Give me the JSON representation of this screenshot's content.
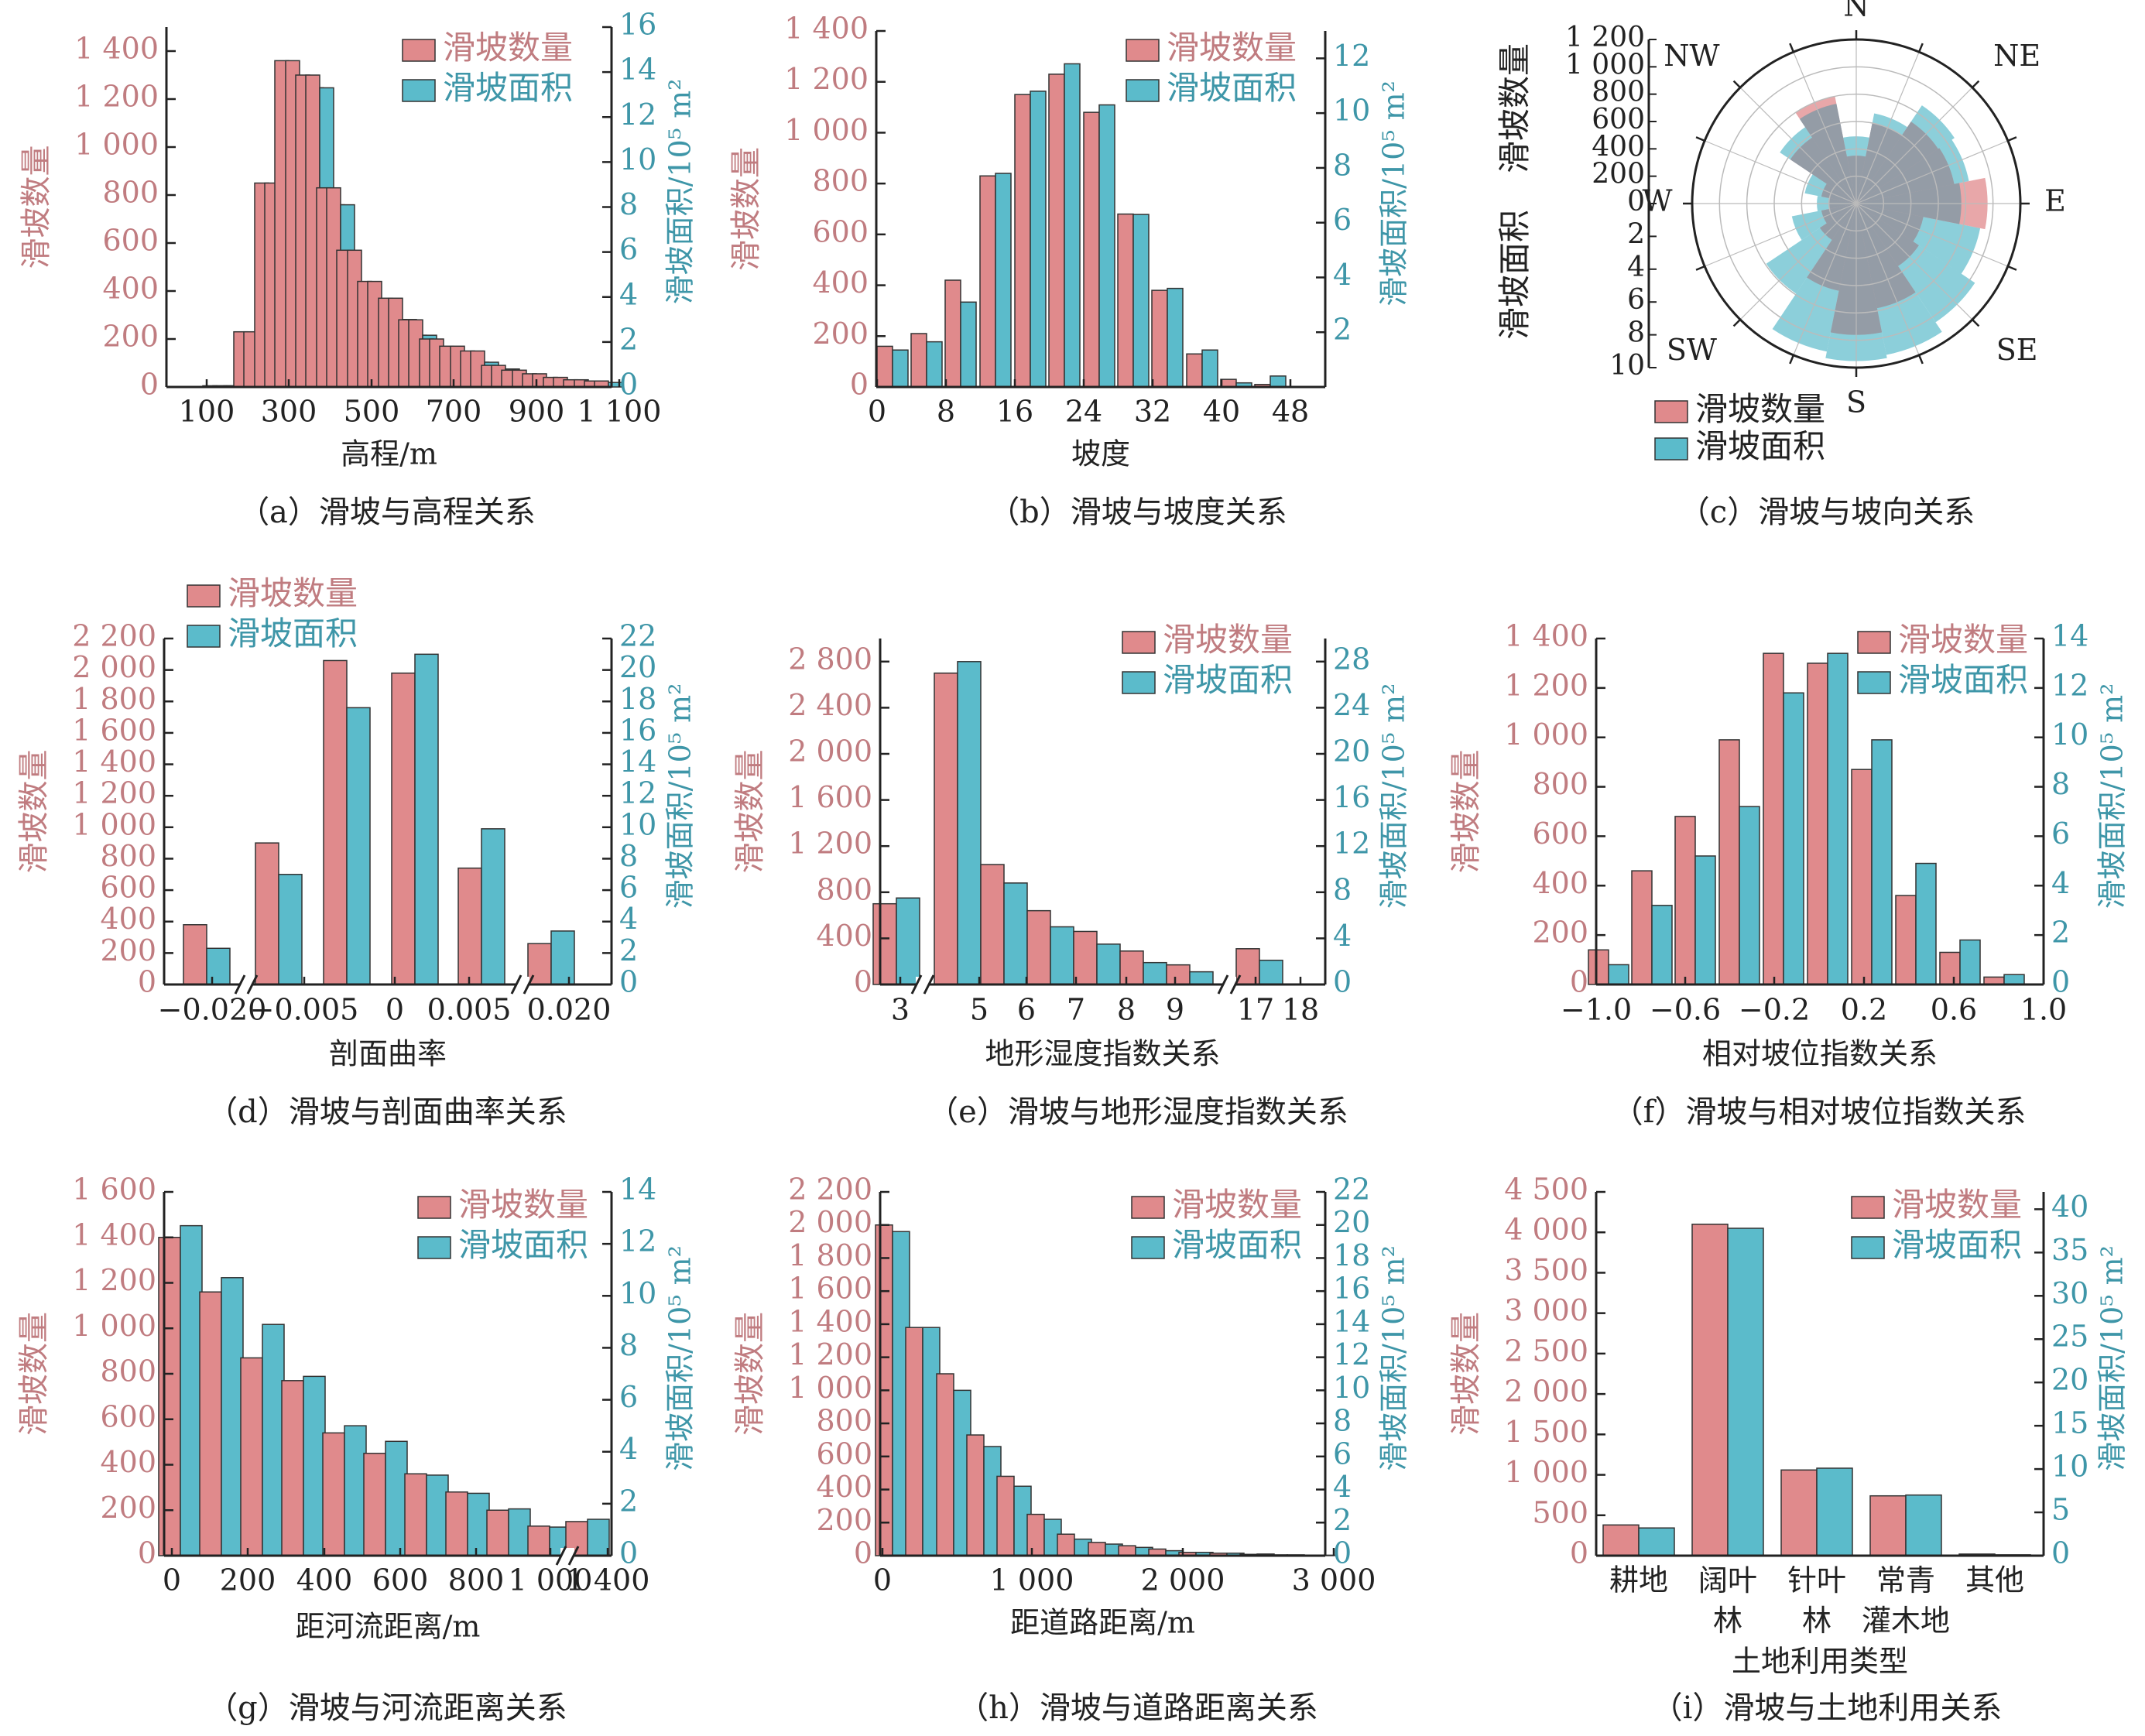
{
  "colors": {
    "count": "#E08A8C",
    "area": "#5BBBCB",
    "count_text": "#C07C80",
    "area_text": "#3E96A8",
    "axis": "#222222"
  },
  "chart_data": [
    {
      "id": "a",
      "type": "bar",
      "caption": "（a）滑坡与高程关系",
      "xlabel": "高程/m",
      "ylabel_left": "滑坡数量",
      "ylabel_right": "滑坡面积/10⁵ m²",
      "legend": [
        "滑坡数量",
        "滑坡面积"
      ],
      "legend_position": "top-right",
      "ylim_left": [
        0,
        1500
      ],
      "ylim_right": [
        0,
        16
      ],
      "yticks_left": [
        "0",
        "200",
        "400",
        "600",
        "800",
        "1 000",
        "1 200",
        "1 400"
      ],
      "yticks_right": [
        "0",
        "2",
        "4",
        "6",
        "8",
        "10",
        "12",
        "14",
        "16"
      ],
      "xticks": [
        "100",
        "300",
        "500",
        "700",
        "900",
        "1 100"
      ],
      "categories": [
        "0-20",
        "20-40",
        "40-60",
        "60-80",
        "80-100",
        "100-120",
        "120-140",
        "140-160",
        "160-180",
        "180-200",
        "200-220",
        "220-240",
        "240-260",
        "260-280",
        "280-300",
        "300-320",
        "320-340",
        "340-360",
        "360-380",
        "380-400",
        "400-420",
        "420-440",
        "440-460",
        "460-480",
        "480-500",
        "500-520",
        "520-540",
        "540-560",
        "560-580",
        "580-600",
        "600-620",
        "620-640",
        "640-660",
        "660-680",
        "680-700",
        "700-720",
        "720-740",
        "740-760",
        "760-780",
        "780-800",
        "800-820",
        "820-840",
        "840-860",
        "860-880",
        "880-900",
        "900-920",
        "920-940",
        "940-960",
        "960-980",
        "980-1000",
        "1000-1020",
        "1020-1040",
        "1040-1060",
        "1060-1080",
        "1080-1100"
      ],
      "series": [
        {
          "name": "滑坡数量",
          "values": [
            0,
            0,
            0,
            5,
            5,
            5,
            230,
            230,
            850,
            850,
            1360,
            1360,
            1300,
            1300,
            830,
            830,
            570,
            570,
            440,
            440,
            370,
            370,
            280,
            280,
            200,
            200,
            170,
            170,
            150,
            150,
            90,
            90,
            70,
            70,
            55,
            55,
            40,
            40,
            30,
            30,
            25,
            25,
            18,
            18,
            12,
            12,
            8,
            8,
            5,
            5,
            3,
            3,
            2,
            2,
            0
          ]
        },
        {
          "name": "滑坡面积",
          "values": [
            0,
            0,
            0,
            0.05,
            0.05,
            0.05,
            1.6,
            1.6,
            6.3,
            6.3,
            13.6,
            13.6,
            13.3,
            13.3,
            8.1,
            8.1,
            4.6,
            4.6,
            3.9,
            3.9,
            3.0,
            3.0,
            2.3,
            2.3,
            1.8,
            1.8,
            1.3,
            1.3,
            1.1,
            1.1,
            0.8,
            0.8,
            0.5,
            0.5,
            0.4,
            0.4,
            0.3,
            0.3,
            0.2,
            0.2,
            0.2,
            0.2,
            0.1,
            0.1,
            0.1,
            0.1,
            0.05,
            0.05,
            0.05,
            0.05,
            0.03,
            0.03,
            0.02,
            0.02,
            0
          ]
        }
      ]
    },
    {
      "id": "b",
      "type": "bar",
      "caption": "（b）滑坡与坡度关系",
      "xlabel": "坡度",
      "ylabel_left": "滑坡数量",
      "ylabel_right": "滑坡面积/10⁵ m²",
      "legend": [
        "滑坡数量",
        "滑坡面积"
      ],
      "legend_position": "top-right",
      "ylim_left": [
        0,
        1400
      ],
      "ylim_right": [
        0,
        13
      ],
      "yticks_left": [
        "0",
        "200",
        "400",
        "600",
        "800",
        "1 000",
        "1 200",
        "1 400"
      ],
      "yticks_right": [
        "2",
        "4",
        "6",
        "8",
        "10",
        "12"
      ],
      "xticks": [
        "0",
        "8",
        "16",
        "24",
        "32",
        "40",
        "48"
      ],
      "categories": [
        "0-4",
        "4-8",
        "8-12",
        "12-16",
        "16-20",
        "20-24",
        "24-28",
        "28-32",
        "32-36",
        "36-40",
        "40-44",
        "44-48"
      ],
      "series": [
        {
          "name": "滑坡数量",
          "values": [
            160,
            210,
            420,
            830,
            1150,
            1230,
            1080,
            680,
            380,
            130,
            30,
            10
          ]
        },
        {
          "name": "滑坡面积",
          "values": [
            1.35,
            1.65,
            3.1,
            7.8,
            10.8,
            11.8,
            10.3,
            6.3,
            3.6,
            1.35,
            0.15,
            0.4
          ]
        }
      ]
    },
    {
      "id": "c",
      "type": "rose",
      "caption": "（c）滑坡与坡向关系",
      "ylabel_count": "滑坡数量",
      "ylabel_area": "滑坡面积",
      "legend": [
        "滑坡数量",
        "滑坡面积"
      ],
      "legend_position": "bottom-left",
      "radial_ticks_count": [
        "0",
        "200",
        "400",
        "600",
        "800",
        "1 000",
        "1 200"
      ],
      "radial_ticks_area": [
        "0",
        "2",
        "4",
        "6",
        "8",
        "10"
      ],
      "directions": [
        "N",
        "NE",
        "E",
        "SE",
        "S",
        "SW",
        "W",
        "NW"
      ],
      "sectors_deg": [
        0,
        22.5,
        45,
        67.5,
        90,
        112.5,
        135,
        157.5,
        180,
        202.5,
        225,
        247.5,
        270,
        292.5,
        315,
        337.5
      ],
      "series": [
        {
          "name": "滑坡数量",
          "values": [
            350,
            600,
            720,
            730,
            960,
            500,
            550,
            780,
            960,
            650,
            320,
            260,
            200,
            260,
            580,
            800
          ]
        },
        {
          "name": "滑坡面积",
          "values": [
            4.1,
            5.6,
            7.2,
            7.0,
            6.4,
            7.7,
            8.7,
            9.4,
            9.6,
            9.2,
            6.6,
            4.0,
            2.4,
            3.2,
            5.6,
            6.2
          ]
        }
      ]
    },
    {
      "id": "d",
      "type": "bar",
      "caption": "（d）滑坡与剖面曲率关系",
      "xlabel": "剖面曲率",
      "ylabel_left": "滑坡数量",
      "ylabel_right": "滑坡面积/10⁵ m²",
      "legend": [
        "滑坡数量",
        "滑坡面积"
      ],
      "legend_position": "top-left",
      "ylim_left": [
        0,
        2200
      ],
      "ylim_right": [
        0,
        22
      ],
      "yticks_left": [
        "0",
        "200",
        "400",
        "600",
        "800",
        "1 000",
        "1 200",
        "1 400",
        "1 600",
        "1 800",
        "2 000",
        "2 200"
      ],
      "yticks_right": [
        "0",
        "2",
        "4",
        "6",
        "8",
        "10",
        "12",
        "14",
        "16",
        "18",
        "20",
        "22"
      ],
      "xticks": [
        "−0.020",
        "−0.005",
        "0",
        "0.005",
        "0.020"
      ],
      "categories": [
        "<−0.020",
        "−0.010~−0.005",
        "−0.005~0",
        "0~0.005",
        "0.005~0.010",
        ">0.020"
      ],
      "series": [
        {
          "name": "滑坡数量",
          "values": [
            380,
            900,
            2060,
            1980,
            740,
            260
          ]
        },
        {
          "name": "滑坡面积",
          "values": [
            2.3,
            7.0,
            17.6,
            21.0,
            9.9,
            3.4
          ]
        }
      ]
    },
    {
      "id": "e",
      "type": "bar",
      "caption": "（e）滑坡与地形湿度指数关系",
      "xlabel": "地形湿度指数关系",
      "ylabel_left": "滑坡数量",
      "ylabel_right": "滑坡面积/10⁵ m²",
      "legend": [
        "滑坡数量",
        "滑坡面积"
      ],
      "legend_position": "top-right",
      "ylim_left": [
        0,
        3000
      ],
      "ylim_right": [
        0,
        30
      ],
      "yticks_left": [
        "0",
        "400",
        "800",
        "1 200",
        "1 600",
        "2 000",
        "2 400",
        "2 800"
      ],
      "yticks_right": [
        "0",
        "4",
        "8",
        "12",
        "16",
        "20",
        "24",
        "28"
      ],
      "xticks": [
        "3",
        "5",
        "6",
        "7",
        "8",
        "9",
        "17",
        "18"
      ],
      "categories": [
        "3-4",
        "4-5",
        "5-6",
        "6-7",
        "7-8",
        "8-9",
        "9-10",
        "17-18"
      ],
      "series": [
        {
          "name": "滑坡数量",
          "values": [
            700,
            2700,
            1040,
            640,
            460,
            290,
            170,
            310
          ]
        },
        {
          "name": "滑坡面积",
          "values": [
            7.5,
            28.0,
            8.8,
            5.0,
            3.5,
            1.9,
            1.1,
            2.1
          ]
        }
      ]
    },
    {
      "id": "f",
      "type": "bar",
      "caption": "（f）滑坡与相对坡位指数关系",
      "xlabel": "相对坡位指数关系",
      "ylabel_left": "滑坡数量",
      "ylabel_right": "滑坡面积/10⁵ m²",
      "legend": [
        "滑坡数量",
        "滑坡面积"
      ],
      "legend_position": "top-right",
      "ylim_left": [
        0,
        1400
      ],
      "ylim_right": [
        0,
        14
      ],
      "yticks_left": [
        "0",
        "200",
        "400",
        "600",
        "800",
        "1 000",
        "1 200",
        "1 400"
      ],
      "yticks_right": [
        "0",
        "2",
        "4",
        "6",
        "8",
        "10",
        "12",
        "14"
      ],
      "xticks": [
        "−1.0",
        "−0.6",
        "−0.2",
        "0.2",
        "0.6",
        "1.0"
      ],
      "categories": [
        "−1.0~−0.8",
        "−0.8~−0.6",
        "−0.6~−0.4",
        "−0.4~−0.2",
        "−0.2~0",
        "0~0.2",
        "0.2~0.4",
        "0.4~0.6",
        "0.6~0.8",
        "0.8~1.0"
      ],
      "series": [
        {
          "name": "滑坡数量",
          "values": [
            140,
            460,
            680,
            990,
            1340,
            1300,
            870,
            360,
            130,
            30
          ]
        },
        {
          "name": "滑坡面积",
          "values": [
            0.8,
            3.2,
            5.2,
            7.2,
            11.8,
            13.4,
            9.9,
            4.9,
            1.8,
            0.4
          ]
        }
      ]
    },
    {
      "id": "g",
      "type": "bar",
      "caption": "（g）滑坡与河流距离关系",
      "xlabel": "距河流距离/m",
      "ylabel_left": "滑坡数量",
      "ylabel_right": "滑坡面积/10⁵ m²",
      "legend": [
        "滑坡数量",
        "滑坡面积"
      ],
      "legend_position": "top-right",
      "ylim_left": [
        0,
        1600
      ],
      "ylim_right": [
        0,
        14
      ],
      "yticks_left": [
        "0",
        "200",
        "400",
        "600",
        "800",
        "1 000",
        "1 200",
        "1 400",
        "1 600"
      ],
      "yticks_right": [
        "0",
        "2",
        "4",
        "6",
        "8",
        "10",
        "12",
        "14"
      ],
      "xticks": [
        "0",
        "200",
        "400",
        "600",
        "800",
        "1 000",
        "1 400"
      ],
      "categories": [
        "0-100",
        "100-200",
        "200-300",
        "300-400",
        "400-500",
        "500-600",
        "600-700",
        "700-800",
        "800-900",
        "900-1000",
        ">1000"
      ],
      "series": [
        {
          "name": "滑坡数量",
          "values": [
            1400,
            1160,
            870,
            770,
            540,
            450,
            360,
            280,
            200,
            130,
            150
          ]
        },
        {
          "name": "滑坡面积",
          "values": [
            12.7,
            10.7,
            8.9,
            6.9,
            5.0,
            4.4,
            3.1,
            2.4,
            1.8,
            1.1,
            1.4
          ]
        }
      ]
    },
    {
      "id": "h",
      "type": "bar",
      "caption": "（h）滑坡与道路距离关系",
      "xlabel": "距道路距离/m",
      "ylabel_left": "滑坡数量",
      "ylabel_right": "滑坡面积/10⁵ m²",
      "legend": [
        "滑坡数量",
        "滑坡面积"
      ],
      "legend_position": "top-right",
      "ylim_left": [
        0,
        2200
      ],
      "ylim_right": [
        0,
        22
      ],
      "yticks_left": [
        "0",
        "200",
        "400",
        "600",
        "800",
        "1 000",
        "1 200",
        "1 400",
        "1 600",
        "1 800",
        "2 000",
        "2 200"
      ],
      "yticks_right": [
        "0",
        "2",
        "4",
        "6",
        "8",
        "10",
        "12",
        "14",
        "16",
        "18",
        "20",
        "22"
      ],
      "xticks": [
        "0",
        "1 000",
        "2 000",
        "3 000"
      ],
      "categories": [
        "0-200",
        "200-400",
        "400-600",
        "600-800",
        "800-1000",
        "1000-1200",
        "1200-1400",
        "1400-1600",
        "1600-1800",
        "1800-2000",
        "2000-2200",
        "2200-2400",
        "2400-2600",
        "2600-2800",
        "2800-3000"
      ],
      "series": [
        {
          "name": "滑坡数量",
          "values": [
            2000,
            1380,
            1100,
            730,
            480,
            250,
            130,
            80,
            60,
            40,
            20,
            15,
            8,
            5,
            3
          ]
        },
        {
          "name": "滑坡面积",
          "values": [
            19.6,
            13.8,
            10.0,
            6.6,
            4.2,
            2.2,
            1.0,
            0.7,
            0.5,
            0.3,
            0.2,
            0.15,
            0.1,
            0.05,
            0.03
          ]
        }
      ]
    },
    {
      "id": "i",
      "type": "bar",
      "caption": "（i）滑坡与土地利用关系",
      "xlabel": "土地利用类型",
      "ylabel_left": "滑坡数量",
      "ylabel_right": "滑坡面积/10⁵ m²",
      "legend": [
        "滑坡数量",
        "滑坡面积"
      ],
      "legend_position": "top-right",
      "ylim_left": [
        0,
        4500
      ],
      "ylim_right": [
        0,
        42
      ],
      "yticks_left": [
        "0",
        "500",
        "1 000",
        "1 500",
        "2 000",
        "2 500",
        "3 000",
        "3 500",
        "4 000",
        "4 500"
      ],
      "yticks_right": [
        "0",
        "5",
        "10",
        "15",
        "20",
        "25",
        "30",
        "35",
        "40"
      ],
      "xticks": [
        "耕地",
        "阔叶林",
        "针叶林",
        "常青灌木地",
        "其他"
      ],
      "categories": [
        "耕地",
        "阔叶林",
        "针叶林",
        "常青灌木地",
        "其他"
      ],
      "series": [
        {
          "name": "滑坡数量",
          "values": [
            380,
            4100,
            1060,
            740,
            20
          ]
        },
        {
          "name": "滑坡面积",
          "values": [
            3.2,
            37.8,
            10.1,
            7.0,
            0.1
          ]
        }
      ]
    }
  ]
}
